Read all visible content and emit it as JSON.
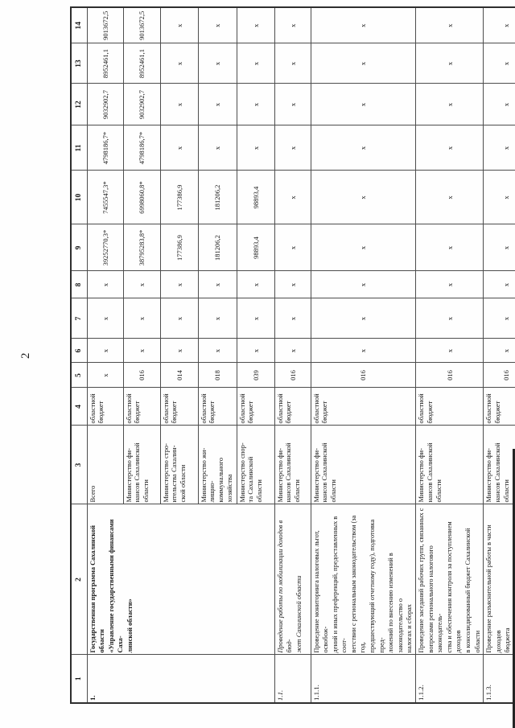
{
  "page": {
    "number": "2"
  },
  "table": {
    "column_headers": [
      "1",
      "2",
      "3",
      "4",
      "5",
      "6",
      "7",
      "8",
      "9",
      "10",
      "11",
      "12",
      "13",
      "14"
    ],
    "rows": [
      {
        "num": "1.",
        "activity": "Государственная программа Сахалинской области\n«Управление государственными финансами Саха-\nлинской области»",
        "style": "bold",
        "rowspan": 5,
        "executor": "Всего",
        "budget": "областной\nбюджет",
        "values": [
          "х",
          "х",
          "х",
          "х",
          "39252770,3*",
          "7455547,3*",
          "4798186,7*",
          "9032902,7",
          "8952461,1",
          "9013672,5"
        ]
      },
      {
        "executor": "Министерство фи-\nнансов Сахалинской\nобласти",
        "budget": "областной\nбюджет",
        "values": [
          "016",
          "х",
          "х",
          "х",
          "38795283,8*",
          "6998060,8*",
          "4798186,7*",
          "9032902,7",
          "8952461,1",
          "9013672,5"
        ]
      },
      {
        "executor": "Министерство стро-\nительства Сахалин-\nской области",
        "budget": "областной\nбюджет",
        "values": [
          "014",
          "х",
          "х",
          "х",
          "177386,9",
          "177386,9",
          "х",
          "х",
          "х",
          "х"
        ]
      },
      {
        "executor": "Министерство жи-\nлищно-\nкоммунального\nхозяйства",
        "budget": "областной\nбюджет",
        "values": [
          "018",
          "х",
          "х",
          "х",
          "181206,2",
          "181206,2",
          "х",
          "х",
          "х",
          "х"
        ]
      },
      {
        "executor": "Министерство спор-\nта Сахалинской\nобласти",
        "budget": "областной\nбюджет",
        "values": [
          "039",
          "х",
          "х",
          "х",
          "98893,4",
          "98893,4",
          "х",
          "х",
          "х",
          "х"
        ]
      },
      {
        "num": "1.1.",
        "activity": "Проведение работы по мобилизации доходов в бюд-\nжет Сахалинской области",
        "style": "italic",
        "executor": "Министерство фи-\nнансов Сахалинской\nобласти",
        "budget": "областной\nбюджет",
        "values": [
          "016",
          "х",
          "х",
          "х",
          "х",
          "х",
          "х",
          "х",
          "х",
          "х"
        ]
      },
      {
        "num": "1.1.1.",
        "activity": "Проведение мониторинга налоговых льгот, освобож-\nдений и иных преференций, предоставленных в соот-\nветствии с региональным законодательством (за год,\nпредшествующий отчетному году), подготовка пред-\nложений по внесению изменений в законодательство о\nналогах и сборах",
        "style": "normal",
        "executor": "Министерство фи-\nнансов Сахалинской\nобласти",
        "budget": "областной\nбюджет",
        "values": [
          "016",
          "х",
          "х",
          "х",
          "х",
          "х",
          "х",
          "х",
          "х",
          "х"
        ]
      },
      {
        "num": "1.1.2.",
        "activity": "Проведение заседаний рабочих групп, связанных с\nвопросами регионального налогового законодатель-\nства и обеспечения контроля за поступлением доходов\nв консолидированный бюджет Сахалинской области",
        "style": "normal",
        "executor": "Министерство фи-\nнансов Сахалинской\nобласти",
        "budget": "областной\nбюджет",
        "values": [
          "016",
          "х",
          "х",
          "х",
          "х",
          "х",
          "х",
          "х",
          "х",
          "х"
        ]
      },
      {
        "num": "1.1.3.",
        "activity": "Проведение разъяснительной работы в части доходов\nбюджета",
        "style": "normal",
        "executor": "Министерство фи-\nнансов Сахалинской\nобласти",
        "budget": "областной\nбюджет",
        "values": [
          "016",
          "х",
          "х",
          "х",
          "х",
          "х",
          "х",
          "х",
          "х",
          "х"
        ]
      }
    ]
  }
}
